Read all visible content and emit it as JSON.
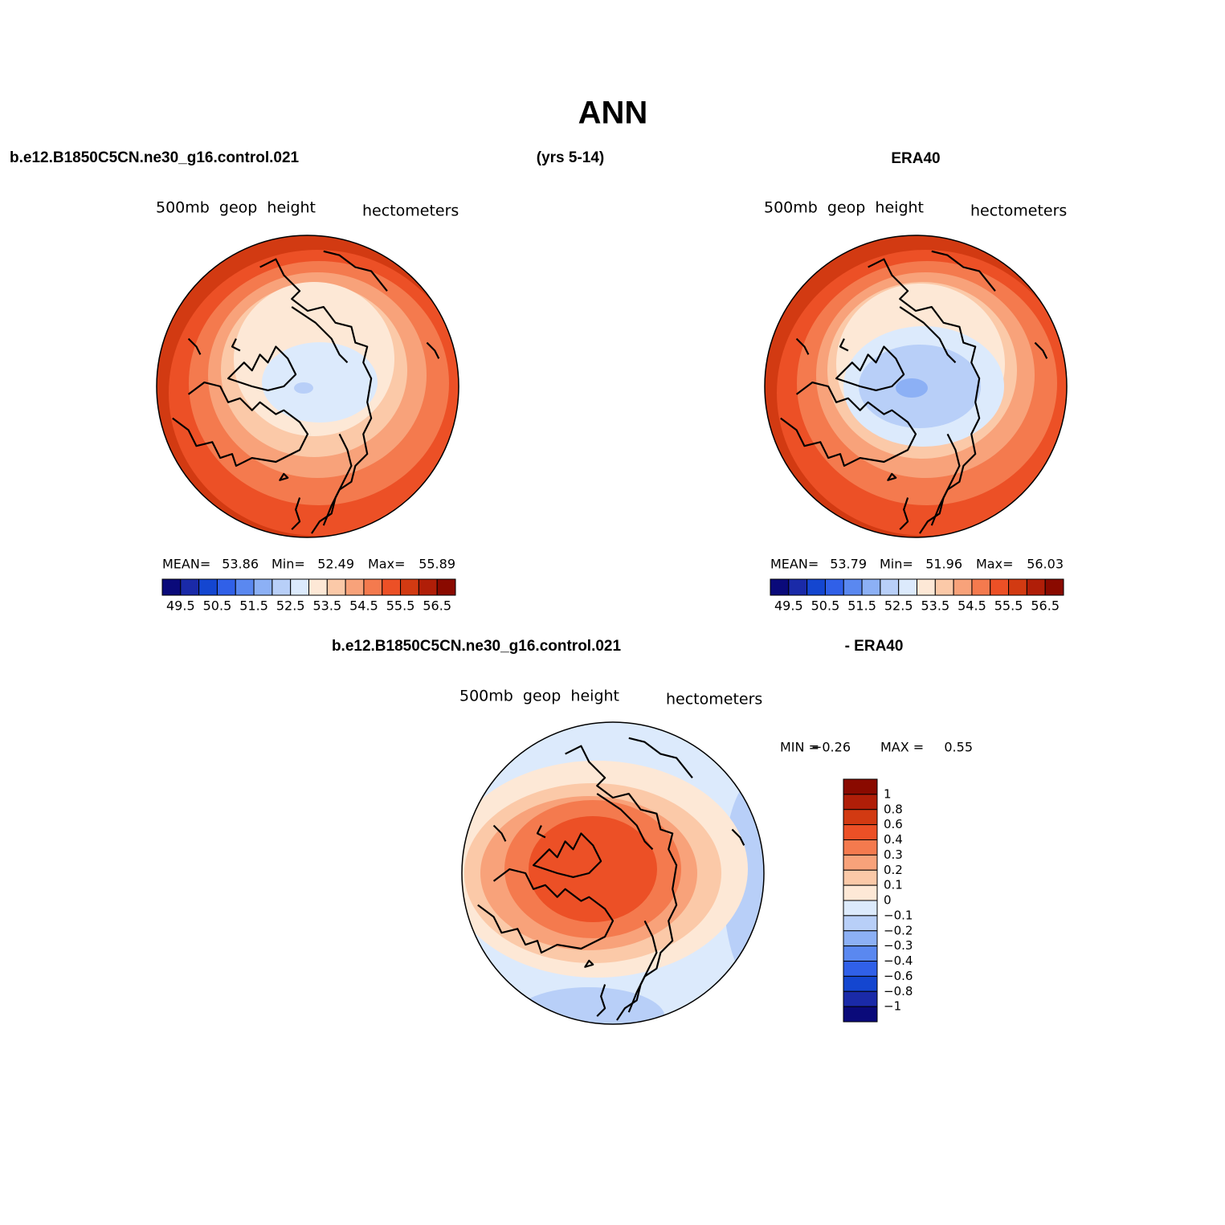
{
  "title": "ANN",
  "header": {
    "left": "b.e12.B1850C5CN.ne30_g16.control.021",
    "center": "(yrs 5-14)",
    "right": "ERA40"
  },
  "panels": [
    {
      "variable": "500mb  geop  height",
      "units": "hectometers",
      "stats": [
        {
          "label": "MEAN=",
          "value": 53.86
        },
        {
          "label": "Min=",
          "value": 52.49
        },
        {
          "label": "Max=",
          "value": 55.89
        }
      ]
    },
    {
      "variable": "500mb  geop  height",
      "units": "hectometers",
      "stats": [
        {
          "label": "MEAN=",
          "value": 53.79
        },
        {
          "label": "Min=",
          "value": 51.96
        },
        {
          "label": "Max=",
          "value": 56.03
        }
      ]
    }
  ],
  "colorbar": {
    "colors": [
      "#0a0a7a",
      "#1a2aa8",
      "#1446d0",
      "#3060e8",
      "#5a88f0",
      "#8cb0f5",
      "#b8cff8",
      "#dceafc",
      "#fde8d6",
      "#fbc9a8",
      "#f8a27a",
      "#f47a4e",
      "#ec5026",
      "#d23a12",
      "#b01e08",
      "#8a0a00"
    ],
    "labels": [
      49.5,
      50.5,
      51.5,
      52.5,
      53.5,
      54.5,
      55.5,
      56.5
    ]
  },
  "difference": {
    "header": {
      "left": "b.e12.B1850C5CN.ne30_g16.control.021",
      "right": "- ERA40"
    },
    "variable": "500mb  geop  height",
    "units": "hectometers",
    "stats": [
      {
        "label": "MIN =",
        "value": "−0.26"
      },
      {
        "label": "MAX =",
        "value": 0.55
      }
    ],
    "colorbar": {
      "colors": [
        "#8a0a00",
        "#b01e08",
        "#d23a12",
        "#ec5026",
        "#f47a4e",
        "#f8a27a",
        "#fbc9a8",
        "#fde8d6",
        "#dceafc",
        "#b8cff8",
        "#8cb0f5",
        "#5a88f0",
        "#3060e8",
        "#1446d0",
        "#1a2aa8",
        "#0a0a7a"
      ],
      "labels": [
        1,
        0.8,
        0.6,
        0.4,
        0.3,
        0.2,
        0.1,
        0,
        "−0.1",
        "−0.2",
        "−0.3",
        "−0.4",
        "−0.6",
        "−0.8",
        "−1"
      ]
    }
  }
}
